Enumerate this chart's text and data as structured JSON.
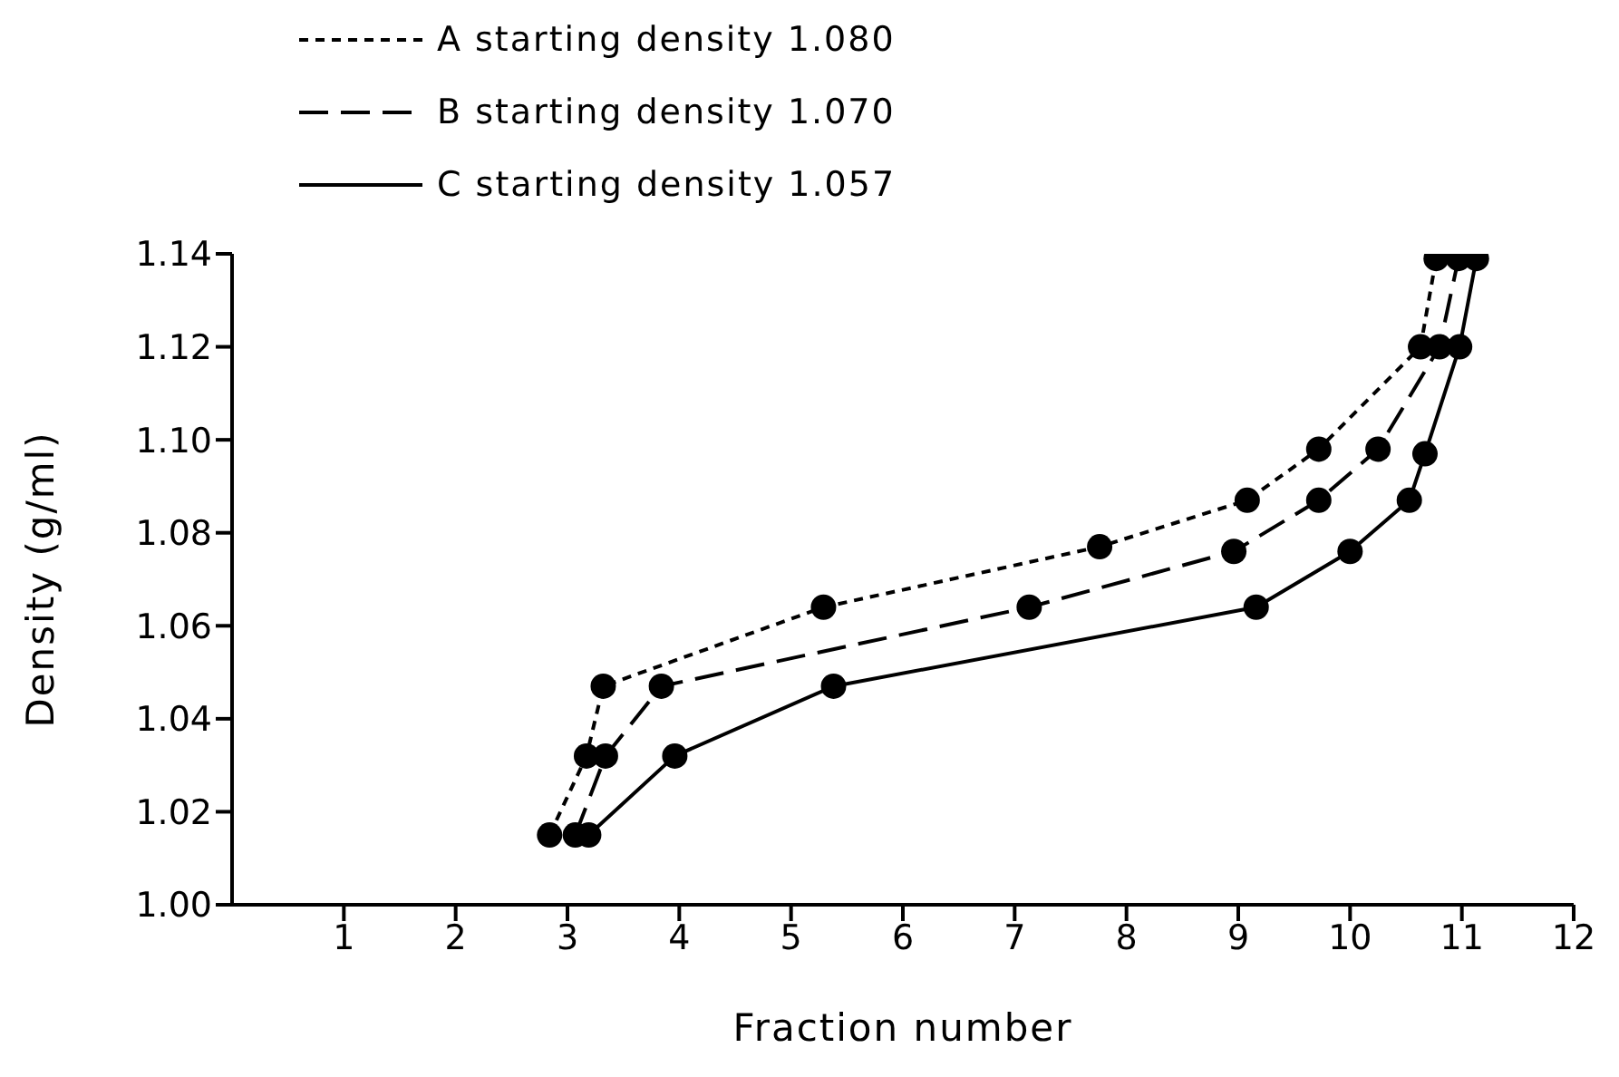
{
  "chart_data": {
    "type": "line",
    "xlabel": "Fraction number",
    "ylabel": "Density (g/ml)",
    "xlim": [
      0,
      12
    ],
    "xticks": [
      1,
      2,
      3,
      4,
      5,
      6,
      7,
      8,
      9,
      10,
      11,
      12
    ],
    "ylim": [
      1,
      1.14
    ],
    "yticks": [
      {
        "value": 1,
        "label": "1.00"
      },
      {
        "value": 1.02,
        "label": "1.02"
      },
      {
        "value": 1.04,
        "label": "1.04"
      },
      {
        "value": 1.06,
        "label": "1.06"
      },
      {
        "value": 1.08,
        "label": "1.08"
      },
      {
        "value": 1.1,
        "label": "1.10"
      },
      {
        "value": 1.12,
        "label": "1.12"
      },
      {
        "value": 1.14,
        "label": "1.14"
      }
    ],
    "grid": false,
    "legend": "top left",
    "marker": "circle",
    "series": [
      {
        "name": "A starting density 1.080",
        "color": "#000000",
        "line_style": "dotted",
        "x": [
          2.84,
          3.17,
          3.32,
          5.29,
          7.76,
          9.08,
          9.72,
          10.63,
          10.77
        ],
        "values": [
          1.015,
          1.032,
          1.047,
          1.064,
          1.077,
          1.087,
          1.098,
          1.12,
          1.139
        ]
      },
      {
        "name": "B starting density 1.070",
        "color": "#000000",
        "line_style": "dashed",
        "x": [
          3.07,
          3.34,
          3.84,
          7.13,
          8.96,
          9.72,
          10.25,
          10.8,
          10.97
        ],
        "values": [
          1.015,
          1.032,
          1.047,
          1.064,
          1.076,
          1.087,
          1.098,
          1.12,
          1.139
        ]
      },
      {
        "name": "C starting density 1.057",
        "color": "#000000",
        "line_style": "solid",
        "x": [
          3.19,
          3.96,
          5.38,
          9.16,
          10,
          10.53,
          10.67,
          10.98,
          11.13
        ],
        "values": [
          1.015,
          1.032,
          1.047,
          1.064,
          1.076,
          1.087,
          1.097,
          1.12,
          1.139
        ]
      }
    ]
  }
}
